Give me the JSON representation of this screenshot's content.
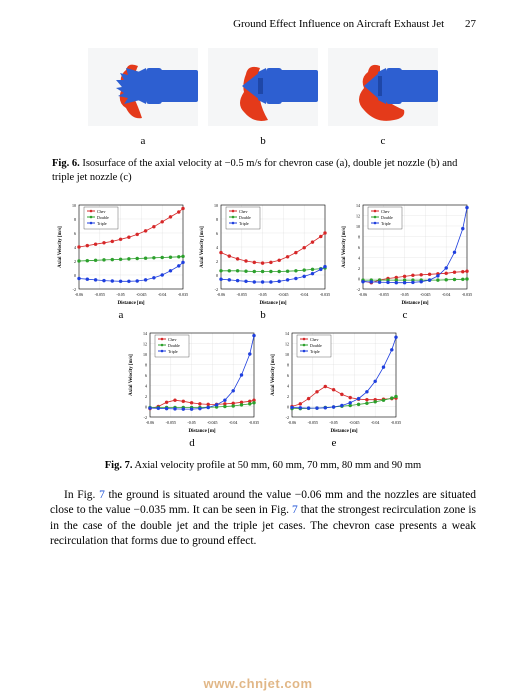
{
  "header": {
    "title": "Ground Effect Influence on Aircraft Exhaust Jet",
    "page_number": "27"
  },
  "fig6": {
    "labels": [
      "a",
      "b",
      "c"
    ],
    "caption_label": "Fig. 6.",
    "caption_text": "Isosurface of the axial velocity at −0.5 m/s for chevron case (a), double jet nozzle (b) and triple jet nozzle (c)",
    "nozzle_color": "#2d5fd1",
    "surface_color": "#e43a1a",
    "background": "#f5f6f7"
  },
  "fig7": {
    "labels": [
      "a",
      "b",
      "c",
      "d",
      "e"
    ],
    "caption_label": "Fig. 7.",
    "caption_text": "Axial velocity profile at 50 mm, 60 mm, 70 mm, 80 mm and 90 mm",
    "axis": {
      "xlabel": "Distance [m]",
      "ylabel": "Axial Velocity [m/s]",
      "label_fontsize": 5,
      "tick_fontsize": 4
    },
    "legend": {
      "items": [
        "Chev",
        "Double",
        "Triple"
      ],
      "fontsize": 4
    },
    "colors": {
      "chev": "#d62728",
      "double": "#2ca02c",
      "triple": "#1f3fde",
      "grid": "#d9d9d9",
      "axis": "#000000",
      "background": "#ffffff",
      "marker_outline": "#000000"
    },
    "style": {
      "line_width": 0.8,
      "marker_size": 1.6,
      "marker_shape": "circle",
      "grid_width": 0.3
    },
    "panels": [
      {
        "id": "a",
        "xlim": [
          -0.06,
          -0.035
        ],
        "xticks": [
          -0.06,
          -0.055,
          -0.05,
          -0.045,
          -0.04,
          -0.035
        ],
        "ylim": [
          -2,
          10
        ],
        "yticks": [
          -2,
          0,
          2,
          4,
          6,
          8,
          10
        ],
        "series": {
          "chev": [
            [
              -0.06,
              4.0
            ],
            [
              -0.058,
              4.2
            ],
            [
              -0.056,
              4.4
            ],
            [
              -0.054,
              4.6
            ],
            [
              -0.052,
              4.8
            ],
            [
              -0.05,
              5.1
            ],
            [
              -0.048,
              5.4
            ],
            [
              -0.046,
              5.8
            ],
            [
              -0.044,
              6.3
            ],
            [
              -0.042,
              6.9
            ],
            [
              -0.04,
              7.6
            ],
            [
              -0.038,
              8.3
            ],
            [
              -0.036,
              9.0
            ],
            [
              -0.035,
              9.5
            ]
          ],
          "double": [
            [
              -0.06,
              2.0
            ],
            [
              -0.058,
              2.05
            ],
            [
              -0.056,
              2.1
            ],
            [
              -0.054,
              2.15
            ],
            [
              -0.052,
              2.2
            ],
            [
              -0.05,
              2.25
            ],
            [
              -0.048,
              2.3
            ],
            [
              -0.046,
              2.35
            ],
            [
              -0.044,
              2.4
            ],
            [
              -0.042,
              2.45
            ],
            [
              -0.04,
              2.5
            ],
            [
              -0.038,
              2.55
            ],
            [
              -0.036,
              2.6
            ],
            [
              -0.035,
              2.65
            ]
          ],
          "triple": [
            [
              -0.06,
              -0.5
            ],
            [
              -0.058,
              -0.6
            ],
            [
              -0.056,
              -0.7
            ],
            [
              -0.054,
              -0.8
            ],
            [
              -0.052,
              -0.85
            ],
            [
              -0.05,
              -0.9
            ],
            [
              -0.048,
              -0.9
            ],
            [
              -0.046,
              -0.85
            ],
            [
              -0.044,
              -0.7
            ],
            [
              -0.042,
              -0.4
            ],
            [
              -0.04,
              0.0
            ],
            [
              -0.038,
              0.6
            ],
            [
              -0.036,
              1.3
            ],
            [
              -0.035,
              1.8
            ]
          ]
        }
      },
      {
        "id": "b",
        "xlim": [
          -0.06,
          -0.035
        ],
        "xticks": [
          -0.06,
          -0.055,
          -0.05,
          -0.045,
          -0.04,
          -0.035
        ],
        "ylim": [
          -2,
          10
        ],
        "yticks": [
          -2,
          0,
          2,
          4,
          6,
          8,
          10
        ],
        "series": {
          "chev": [
            [
              -0.06,
              3.2
            ],
            [
              -0.058,
              2.7
            ],
            [
              -0.056,
              2.3
            ],
            [
              -0.054,
              2.0
            ],
            [
              -0.052,
              1.8
            ],
            [
              -0.05,
              1.7
            ],
            [
              -0.048,
              1.8
            ],
            [
              -0.046,
              2.1
            ],
            [
              -0.044,
              2.6
            ],
            [
              -0.042,
              3.2
            ],
            [
              -0.04,
              3.9
            ],
            [
              -0.038,
              4.7
            ],
            [
              -0.036,
              5.5
            ],
            [
              -0.035,
              6.0
            ]
          ],
          "double": [
            [
              -0.06,
              0.6
            ],
            [
              -0.058,
              0.6
            ],
            [
              -0.056,
              0.6
            ],
            [
              -0.054,
              0.55
            ],
            [
              -0.052,
              0.5
            ],
            [
              -0.05,
              0.5
            ],
            [
              -0.048,
              0.5
            ],
            [
              -0.046,
              0.5
            ],
            [
              -0.044,
              0.55
            ],
            [
              -0.042,
              0.6
            ],
            [
              -0.04,
              0.7
            ],
            [
              -0.038,
              0.8
            ],
            [
              -0.036,
              0.9
            ],
            [
              -0.035,
              1.0
            ]
          ],
          "triple": [
            [
              -0.06,
              -0.6
            ],
            [
              -0.058,
              -0.7
            ],
            [
              -0.056,
              -0.8
            ],
            [
              -0.054,
              -0.9
            ],
            [
              -0.052,
              -1.0
            ],
            [
              -0.05,
              -1.0
            ],
            [
              -0.048,
              -1.0
            ],
            [
              -0.046,
              -0.9
            ],
            [
              -0.044,
              -0.7
            ],
            [
              -0.042,
              -0.5
            ],
            [
              -0.04,
              -0.2
            ],
            [
              -0.038,
              0.2
            ],
            [
              -0.036,
              0.8
            ],
            [
              -0.035,
              1.2
            ]
          ]
        }
      },
      {
        "id": "c",
        "xlim": [
          -0.06,
          -0.035
        ],
        "xticks": [
          -0.06,
          -0.055,
          -0.05,
          -0.045,
          -0.04,
          -0.035
        ],
        "ylim": [
          -2,
          14
        ],
        "yticks": [
          -2,
          0,
          2,
          4,
          6,
          8,
          10,
          12,
          14
        ],
        "series": {
          "chev": [
            [
              -0.06,
              -0.5
            ],
            [
              -0.058,
              -0.8
            ],
            [
              -0.056,
              -0.3
            ],
            [
              -0.054,
              0.0
            ],
            [
              -0.052,
              0.2
            ],
            [
              -0.05,
              0.4
            ],
            [
              -0.048,
              0.6
            ],
            [
              -0.046,
              0.7
            ],
            [
              -0.044,
              0.8
            ],
            [
              -0.042,
              0.9
            ],
            [
              -0.04,
              1.0
            ],
            [
              -0.038,
              1.2
            ],
            [
              -0.036,
              1.3
            ],
            [
              -0.035,
              1.4
            ]
          ],
          "double": [
            [
              -0.06,
              -0.3
            ],
            [
              -0.058,
              -0.3
            ],
            [
              -0.056,
              -0.3
            ],
            [
              -0.054,
              -0.3
            ],
            [
              -0.052,
              -0.3
            ],
            [
              -0.05,
              -0.3
            ],
            [
              -0.048,
              -0.3
            ],
            [
              -0.046,
              -0.3
            ],
            [
              -0.044,
              -0.3
            ],
            [
              -0.042,
              -0.3
            ],
            [
              -0.04,
              -0.25
            ],
            [
              -0.038,
              -0.2
            ],
            [
              -0.036,
              -0.15
            ],
            [
              -0.035,
              -0.1
            ]
          ],
          "triple": [
            [
              -0.06,
              -0.6
            ],
            [
              -0.058,
              -0.65
            ],
            [
              -0.056,
              -0.7
            ],
            [
              -0.054,
              -0.75
            ],
            [
              -0.052,
              -0.8
            ],
            [
              -0.05,
              -0.8
            ],
            [
              -0.048,
              -0.75
            ],
            [
              -0.046,
              -0.6
            ],
            [
              -0.044,
              -0.3
            ],
            [
              -0.042,
              0.5
            ],
            [
              -0.04,
              2.0
            ],
            [
              -0.038,
              5.0
            ],
            [
              -0.036,
              9.5
            ],
            [
              -0.035,
              13.5
            ]
          ]
        }
      },
      {
        "id": "d",
        "xlim": [
          -0.06,
          -0.035
        ],
        "xticks": [
          -0.06,
          -0.055,
          -0.05,
          -0.045,
          -0.04,
          -0.035
        ],
        "ylim": [
          -2,
          14
        ],
        "yticks": [
          -2,
          0,
          2,
          4,
          6,
          8,
          10,
          12,
          14
        ],
        "series": {
          "chev": [
            [
              -0.06,
              -0.4
            ],
            [
              -0.058,
              0.0
            ],
            [
              -0.056,
              0.8
            ],
            [
              -0.054,
              1.2
            ],
            [
              -0.052,
              1.0
            ],
            [
              -0.05,
              0.7
            ],
            [
              -0.048,
              0.5
            ],
            [
              -0.046,
              0.4
            ],
            [
              -0.044,
              0.4
            ],
            [
              -0.042,
              0.5
            ],
            [
              -0.04,
              0.6
            ],
            [
              -0.038,
              0.8
            ],
            [
              -0.036,
              1.0
            ],
            [
              -0.035,
              1.2
            ]
          ],
          "double": [
            [
              -0.06,
              -0.2
            ],
            [
              -0.058,
              -0.2
            ],
            [
              -0.056,
              -0.2
            ],
            [
              -0.054,
              -0.2
            ],
            [
              -0.052,
              -0.2
            ],
            [
              -0.05,
              -0.2
            ],
            [
              -0.048,
              -0.2
            ],
            [
              -0.046,
              -0.15
            ],
            [
              -0.044,
              -0.1
            ],
            [
              -0.042,
              0.0
            ],
            [
              -0.04,
              0.1
            ],
            [
              -0.038,
              0.3
            ],
            [
              -0.036,
              0.5
            ],
            [
              -0.035,
              0.7
            ]
          ],
          "triple": [
            [
              -0.06,
              -0.3
            ],
            [
              -0.058,
              -0.35
            ],
            [
              -0.056,
              -0.4
            ],
            [
              -0.054,
              -0.45
            ],
            [
              -0.052,
              -0.5
            ],
            [
              -0.05,
              -0.5
            ],
            [
              -0.048,
              -0.4
            ],
            [
              -0.046,
              -0.2
            ],
            [
              -0.044,
              0.3
            ],
            [
              -0.042,
              1.2
            ],
            [
              -0.04,
              3.0
            ],
            [
              -0.038,
              6.0
            ],
            [
              -0.036,
              10.0
            ],
            [
              -0.035,
              13.5
            ]
          ]
        }
      },
      {
        "id": "e",
        "xlim": [
          -0.06,
          -0.035
        ],
        "xticks": [
          -0.06,
          -0.055,
          -0.05,
          -0.045,
          -0.04,
          -0.035
        ],
        "ylim": [
          -2,
          14
        ],
        "yticks": [
          -2,
          0,
          2,
          4,
          6,
          8,
          10,
          12,
          14
        ],
        "series": {
          "chev": [
            [
              -0.06,
              0.0
            ],
            [
              -0.058,
              0.5
            ],
            [
              -0.056,
              1.5
            ],
            [
              -0.054,
              2.8
            ],
            [
              -0.052,
              3.8
            ],
            [
              -0.05,
              3.2
            ],
            [
              -0.048,
              2.3
            ],
            [
              -0.046,
              1.7
            ],
            [
              -0.044,
              1.4
            ],
            [
              -0.042,
              1.3
            ],
            [
              -0.04,
              1.3
            ],
            [
              -0.038,
              1.4
            ],
            [
              -0.036,
              1.5
            ],
            [
              -0.035,
              1.6
            ]
          ],
          "double": [
            [
              -0.06,
              -0.4
            ],
            [
              -0.058,
              -0.4
            ],
            [
              -0.056,
              -0.35
            ],
            [
              -0.054,
              -0.3
            ],
            [
              -0.052,
              -0.2
            ],
            [
              -0.05,
              -0.1
            ],
            [
              -0.048,
              0.05
            ],
            [
              -0.046,
              0.2
            ],
            [
              -0.044,
              0.4
            ],
            [
              -0.042,
              0.6
            ],
            [
              -0.04,
              0.9
            ],
            [
              -0.038,
              1.2
            ],
            [
              -0.036,
              1.6
            ],
            [
              -0.035,
              1.9
            ]
          ],
          "triple": [
            [
              -0.06,
              -0.2
            ],
            [
              -0.058,
              -0.25
            ],
            [
              -0.056,
              -0.3
            ],
            [
              -0.054,
              -0.3
            ],
            [
              -0.052,
              -0.25
            ],
            [
              -0.05,
              -0.1
            ],
            [
              -0.048,
              0.2
            ],
            [
              -0.046,
              0.7
            ],
            [
              -0.044,
              1.5
            ],
            [
              -0.042,
              2.8
            ],
            [
              -0.04,
              4.8
            ],
            [
              -0.038,
              7.5
            ],
            [
              -0.036,
              10.8
            ],
            [
              -0.035,
              13.2
            ]
          ]
        }
      }
    ]
  },
  "paragraph": {
    "pre": "In Fig. ",
    "ref1": "7",
    "mid1": " the ground is situated around the value −0.06 mm and the nozzles are situated close to the value −0.035 mm. It can be seen in Fig. ",
    "ref2": "7",
    "mid2": " that the strongest recirculation zone is in the case of the double jet and the triple jet cases. The chevron case presents a weak recirculation that forms due to ground effect."
  },
  "watermark": "www.chnjet.com"
}
